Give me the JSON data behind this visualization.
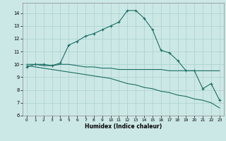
{
  "xlabel": "Humidex (Indice chaleur)",
  "bg_color": "#cce8e6",
  "grid_color": "#aed4d1",
  "line_color": "#1a6e64",
  "line1_x": [
    0,
    1,
    2,
    3,
    4,
    5,
    6,
    7,
    8,
    9,
    10,
    11,
    12,
    13,
    14,
    15,
    16,
    17,
    18,
    19,
    20,
    21,
    22,
    23
  ],
  "line1_y": [
    9.8,
    10.0,
    10.0,
    9.9,
    10.1,
    11.5,
    11.8,
    12.2,
    12.4,
    12.7,
    13.0,
    13.3,
    14.2,
    14.2,
    13.6,
    12.7,
    11.1,
    10.9,
    10.3,
    9.5,
    9.5,
    8.1,
    8.5,
    7.2
  ],
  "line2_x": [
    0,
    1,
    2,
    3,
    4,
    5,
    6,
    7,
    8,
    9,
    10,
    11,
    12,
    13,
    14,
    15,
    16,
    17,
    18,
    19,
    20,
    21,
    22,
    23
  ],
  "line2_y": [
    10.0,
    10.0,
    9.9,
    9.9,
    10.0,
    10.0,
    9.9,
    9.8,
    9.8,
    9.7,
    9.7,
    9.6,
    9.6,
    9.6,
    9.6,
    9.6,
    9.6,
    9.5,
    9.5,
    9.5,
    9.5,
    9.5,
    9.5,
    9.5
  ],
  "line3_x": [
    0,
    1,
    2,
    3,
    4,
    5,
    6,
    7,
    8,
    9,
    10,
    11,
    12,
    13,
    14,
    15,
    16,
    17,
    18,
    19,
    20,
    21,
    22,
    23
  ],
  "line3_y": [
    9.9,
    9.8,
    9.7,
    9.6,
    9.5,
    9.4,
    9.3,
    9.2,
    9.1,
    9.0,
    8.9,
    8.7,
    8.5,
    8.4,
    8.2,
    8.1,
    7.9,
    7.8,
    7.6,
    7.5,
    7.3,
    7.2,
    7.0,
    6.6
  ],
  "xlim": [
    -0.5,
    23.5
  ],
  "ylim": [
    6,
    14.8
  ],
  "yticks": [
    6,
    7,
    8,
    9,
    10,
    11,
    12,
    13,
    14
  ],
  "xticks": [
    0,
    1,
    2,
    3,
    4,
    5,
    6,
    7,
    8,
    9,
    10,
    11,
    12,
    13,
    14,
    15,
    16,
    17,
    18,
    19,
    20,
    21,
    22,
    23
  ]
}
